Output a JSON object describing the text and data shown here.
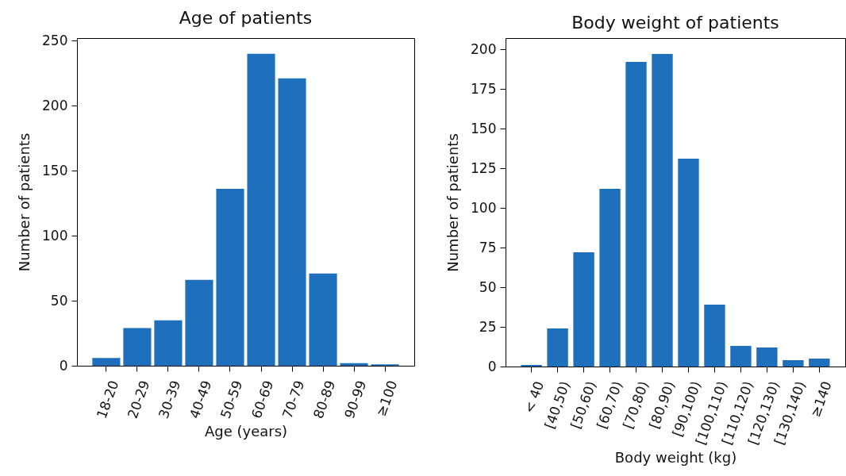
{
  "chart_data": [
    {
      "type": "bar",
      "title": "Age of patients",
      "xlabel": "Age (years)",
      "ylabel": "Number of patients",
      "categories": [
        "18-20",
        "20-29",
        "30-39",
        "40-49",
        "50-59",
        "60-69",
        "70-79",
        "80-89",
        "90-99",
        "≥100"
      ],
      "values": [
        6,
        29,
        35,
        66,
        136,
        240,
        221,
        71,
        2,
        1
      ],
      "color": "#1f70bc",
      "ylim": [
        0,
        252
      ],
      "yticks": [
        0,
        50,
        100,
        150,
        200,
        250
      ]
    },
    {
      "type": "bar",
      "title": "Body weight of patients",
      "xlabel": "Body weight (kg)",
      "ylabel": "Number of patients",
      "categories": [
        "< 40",
        "[40,50)",
        "[50,60)",
        "[60,70)",
        "[70,80)",
        "[80,90)",
        "[90,100)",
        "[100,110)",
        "[110,120)",
        "[120,130)",
        "[130,140)",
        "≥140"
      ],
      "values": [
        1,
        24,
        72,
        112,
        192,
        197,
        131,
        39,
        13,
        12,
        4,
        5
      ],
      "color": "#1f70bc",
      "ylim": [
        0,
        207
      ],
      "yticks": [
        0,
        25,
        50,
        75,
        100,
        125,
        150,
        175,
        200
      ]
    }
  ]
}
